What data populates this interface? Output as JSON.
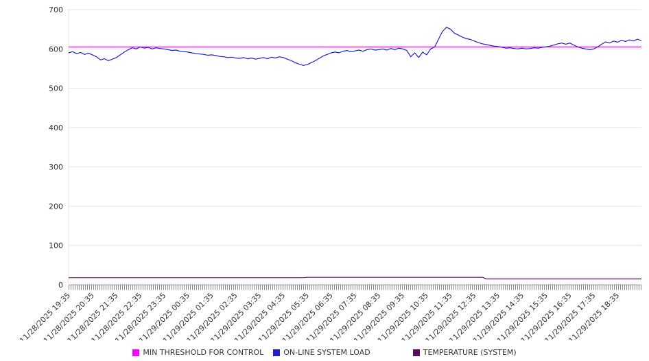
{
  "page": {
    "background": "#ffffff"
  },
  "chart_data": {
    "type": "line",
    "title": "",
    "xlabel": "",
    "ylabel": "",
    "ylim": [
      0,
      700
    ],
    "yticks": [
      0,
      100,
      200,
      300,
      400,
      500,
      600,
      700
    ],
    "grid": true,
    "legend_position": "bottom",
    "points_per_label_interval": 6,
    "x_tick_labels": [
      "11/28/2025 19:35",
      "11/28/2025 20:35",
      "11/28/2025 21:35",
      "11/28/2025 22:35",
      "11/28/2025 23:35",
      "11/29/2025 00:35",
      "11/29/2025 01:35",
      "11/29/2025 02:35",
      "11/29/2025 03:35",
      "11/29/2025 04:35",
      "11/29/2025 05:35",
      "11/29/2025 06:35",
      "11/29/2025 07:35",
      "11/29/2025 08:35",
      "11/29/2025 09:35",
      "11/29/2025 10:35",
      "11/29/2025 11:35",
      "11/29/2025 12:35",
      "11/29/2025 13:35",
      "11/29/2025 14:35",
      "11/29/2025 15:35",
      "11/29/2025 16:35",
      "11/29/2025 17:35",
      "11/29/2025 18:35"
    ],
    "draw_order": [
      0,
      2,
      1
    ],
    "series": [
      {
        "name": "MIN THRESHOLD FOR CONTROL",
        "color": "#ff00ff",
        "type": "constant",
        "value": 605
      },
      {
        "name": "ON-LINE SYSTEM LOAD",
        "color": "#1f1fc8",
        "type": "line",
        "values": [
          590,
          593,
          588,
          591,
          586,
          589,
          585,
          580,
          572,
          575,
          570,
          574,
          578,
          585,
          592,
          598,
          603,
          600,
          605,
          602,
          604,
          600,
          603,
          601,
          600,
          598,
          596,
          597,
          594,
          593,
          592,
          590,
          588,
          587,
          586,
          584,
          585,
          583,
          581,
          580,
          578,
          579,
          577,
          576,
          578,
          575,
          577,
          574,
          576,
          578,
          575,
          579,
          577,
          580,
          578,
          574,
          570,
          565,
          561,
          558,
          560,
          565,
          570,
          576,
          582,
          586,
          590,
          592,
          590,
          594,
          596,
          593,
          595,
          597,
          594,
          598,
          600,
          597,
          598,
          600,
          597,
          601,
          598,
          602,
          600,
          596,
          580,
          590,
          578,
          592,
          585,
          600,
          605,
          625,
          645,
          655,
          650,
          640,
          635,
          630,
          626,
          624,
          620,
          616,
          613,
          611,
          609,
          607,
          606,
          604,
          602,
          603,
          601,
          600,
          602,
          600,
          601,
          603,
          602,
          604,
          605,
          607,
          610,
          613,
          615,
          612,
          615,
          610,
          605,
          602,
          600,
          598,
          600,
          605,
          612,
          618,
          615,
          620,
          617,
          622,
          619,
          623,
          620,
          625,
          621
        ]
      },
      {
        "name": "TEMPERATURE (SYSTEM)",
        "color": "#5a0a5a",
        "type": "line",
        "values": [
          18,
          18,
          18,
          18,
          18,
          18,
          18,
          18,
          18,
          18,
          18,
          18,
          18,
          18,
          18,
          18,
          18,
          18,
          18,
          18,
          18,
          18,
          18,
          18,
          18,
          18,
          18,
          18,
          18,
          18,
          18,
          18,
          18,
          18,
          18,
          18,
          18,
          18,
          18,
          18,
          18,
          18,
          18,
          18,
          18,
          18,
          18,
          18,
          18,
          18,
          18,
          18,
          18,
          18,
          18,
          18,
          18,
          18,
          18,
          18,
          19,
          19,
          19,
          19,
          19,
          19,
          19,
          19,
          19,
          19,
          19,
          19,
          19,
          19,
          19,
          19,
          19,
          19,
          19,
          19,
          19,
          19,
          19,
          19,
          19,
          19,
          19,
          19,
          19,
          19,
          19,
          19,
          19,
          19,
          19,
          19,
          19,
          19,
          19,
          19,
          19,
          19,
          19,
          19,
          19,
          15,
          15,
          15,
          15,
          15,
          15,
          15,
          15,
          15,
          15,
          15,
          15,
          15,
          15,
          15,
          15,
          15,
          15,
          15,
          15,
          15,
          15,
          15,
          15,
          15,
          15,
          15,
          15,
          15,
          15,
          15,
          15,
          15,
          15,
          15,
          15,
          15,
          15,
          15,
          15
        ]
      }
    ]
  }
}
